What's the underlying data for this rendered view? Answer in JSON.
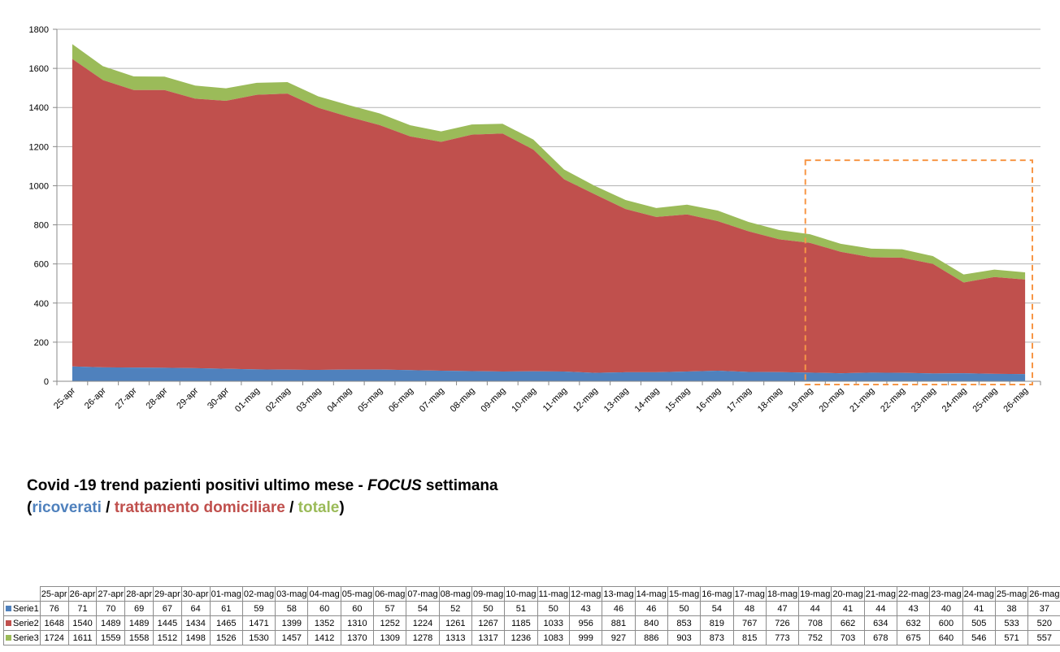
{
  "chart_data": {
    "type": "area",
    "stacked": true,
    "categories": [
      "25-apr",
      "26-apr",
      "27-apr",
      "28-apr",
      "29-apr",
      "30-apr",
      "01-mag",
      "02-mag",
      "03-mag",
      "04-mag",
      "05-mag",
      "06-mag",
      "07-mag",
      "08-mag",
      "09-mag",
      "10-mag",
      "11-mag",
      "12-mag",
      "13-mag",
      "14-mag",
      "15-mag",
      "16-mag",
      "17-mag",
      "18-mag",
      "19-mag",
      "20-mag",
      "21-mag",
      "22-mag",
      "23-mag",
      "24-mag",
      "25-mag",
      "26-mag"
    ],
    "series": [
      {
        "name": "Serie1",
        "color": "#4F81BD",
        "values": [
          76,
          71,
          70,
          69,
          67,
          64,
          61,
          59,
          58,
          60,
          60,
          57,
          54,
          52,
          50,
          51,
          50,
          43,
          46,
          46,
          50,
          54,
          48,
          47,
          44,
          41,
          44,
          43,
          40,
          41,
          38,
          37
        ]
      },
      {
        "name": "Serie2",
        "color": "#C0504D",
        "values": [
          1648,
          1540,
          1489,
          1489,
          1445,
          1434,
          1465,
          1471,
          1399,
          1352,
          1310,
          1252,
          1224,
          1261,
          1267,
          1185,
          1033,
          956,
          881,
          840,
          853,
          819,
          767,
          726,
          708,
          662,
          634,
          632,
          600,
          505,
          533,
          520
        ]
      },
      {
        "name": "Serie3",
        "color": "#9BBB59",
        "values": [
          1724,
          1611,
          1559,
          1558,
          1512,
          1498,
          1526,
          1530,
          1457,
          1412,
          1370,
          1309,
          1278,
          1313,
          1317,
          1236,
          1083,
          999,
          927,
          886,
          903,
          873,
          815,
          773,
          752,
          703,
          678,
          675,
          640,
          546,
          571,
          557
        ]
      }
    ],
    "ylim": [
      0,
      1800
    ],
    "yticks": [
      0,
      200,
      400,
      600,
      800,
      1000,
      1200,
      1400,
      1600,
      1800
    ],
    "grid": true,
    "legend": "table-below",
    "focus_box": {
      "from": "19-mag",
      "to": "26-mag",
      "color": "#F79646"
    }
  },
  "caption": {
    "line1_prefix": "Covid -19 trend pazienti positivi ultimo mese - ",
    "line1_focus": "FOCUS",
    "line1_suffix": " settimana",
    "open": "(",
    "ricoverati": "ricoverati",
    "sep1": " / ",
    "trattamento": "trattamento domiciliare",
    "sep2": " / ",
    "totale": "totale",
    "close": ")"
  }
}
